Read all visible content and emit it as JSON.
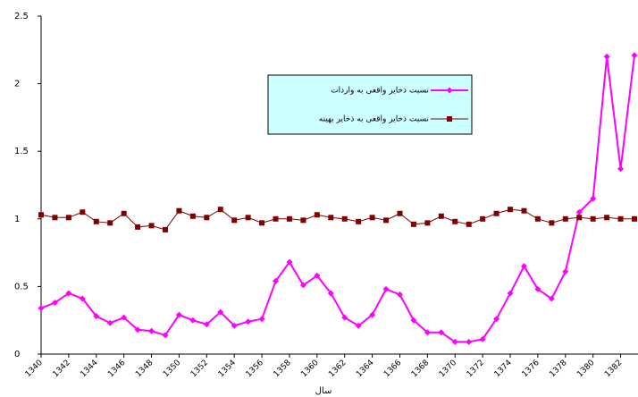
{
  "chart_data": {
    "type": "line",
    "x_label": "سال",
    "x": [
      1340,
      1341,
      1342,
      1343,
      1344,
      1345,
      1346,
      1347,
      1348,
      1349,
      1350,
      1351,
      1352,
      1353,
      1354,
      1355,
      1356,
      1357,
      1358,
      1359,
      1360,
      1361,
      1362,
      1363,
      1364,
      1365,
      1366,
      1367,
      1368,
      1369,
      1370,
      1371,
      1372,
      1373,
      1374,
      1375,
      1376,
      1377,
      1378,
      1379,
      1380,
      1381,
      1382,
      1383
    ],
    "series": [
      {
        "name": "نسبت ذخایر واقعی به واردات",
        "color": "#ff00ff",
        "marker": "diamond",
        "values": [
          0.34,
          0.38,
          0.45,
          0.41,
          0.28,
          0.23,
          0.27,
          0.18,
          0.17,
          0.14,
          0.29,
          0.25,
          0.22,
          0.31,
          0.21,
          0.24,
          0.26,
          0.54,
          0.68,
          0.51,
          0.58,
          0.45,
          0.27,
          0.21,
          0.29,
          0.48,
          0.44,
          0.25,
          0.16,
          0.16,
          0.09,
          0.09,
          0.11,
          0.26,
          0.45,
          0.65,
          0.48,
          0.41,
          0.61,
          1.05,
          1.15,
          2.2,
          1.37,
          2.21
        ]
      },
      {
        "name": "نسبت ذخایر واقعی به ذخایر بهینه",
        "color": "#800000",
        "marker": "square",
        "values": [
          1.03,
          1.01,
          1.01,
          1.05,
          0.98,
          0.97,
          1.04,
          0.94,
          0.95,
          0.92,
          1.06,
          1.02,
          1.01,
          1.07,
          0.99,
          1.01,
          0.97,
          1.0,
          1.0,
          0.99,
          1.03,
          1.01,
          1.0,
          0.98,
          1.01,
          0.99,
          1.04,
          0.96,
          0.97,
          1.02,
          0.98,
          0.96,
          1.0,
          1.04,
          1.07,
          1.06,
          1.0,
          0.97,
          1.0,
          1.01,
          1.0,
          1.01,
          1.0,
          1.0
        ]
      }
    ],
    "xlim": [
      1340,
      1383
    ],
    "xticks": [
      1340,
      1342,
      1344,
      1346,
      1348,
      1350,
      1352,
      1354,
      1356,
      1358,
      1360,
      1362,
      1364,
      1366,
      1368,
      1370,
      1372,
      1374,
      1376,
      1378,
      1380,
      1382
    ],
    "ylim": [
      0,
      2.5
    ],
    "yticks": [
      0,
      0.5,
      1,
      1.5,
      2,
      2.5
    ],
    "grid": false,
    "legend": "center"
  }
}
